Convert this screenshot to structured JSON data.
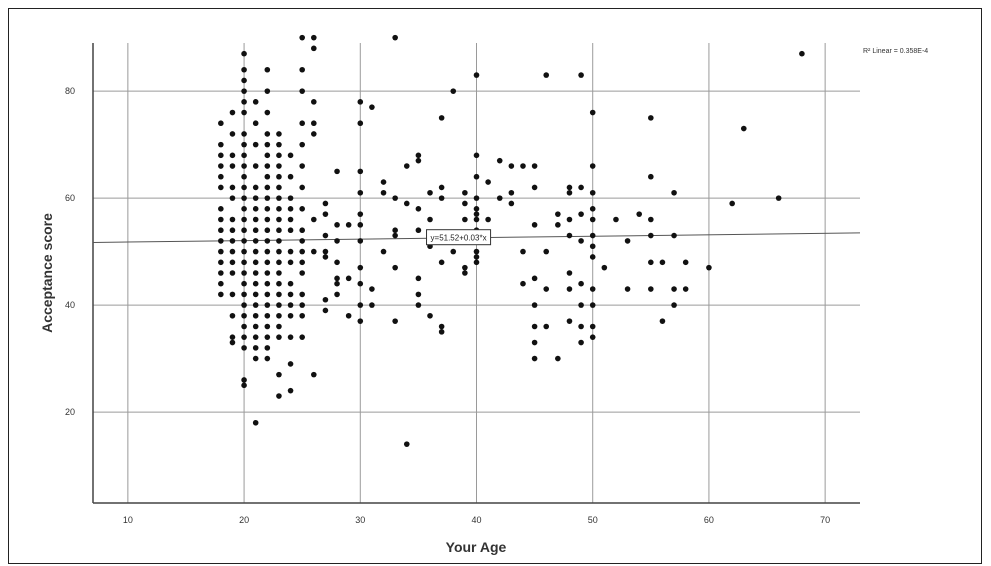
{
  "chart_data": {
    "type": "scatter",
    "title": "",
    "xlabel": "Your Age",
    "ylabel": "Acceptance score",
    "xlim": [
      7,
      73
    ],
    "ylim": [
      3,
      89
    ],
    "xticks": [
      10,
      20,
      30,
      40,
      50,
      60,
      70
    ],
    "yticks": [
      20,
      40,
      60,
      80
    ],
    "xtick_labels": [
      "10",
      "20",
      "30",
      "40",
      "50",
      "60",
      "70"
    ],
    "ytick_labels": [
      "20",
      "40",
      "60",
      "80"
    ],
    "grid": true,
    "legend_text": "R² Linear = 0.358E-4",
    "legend_placement": "top-right",
    "fit_line": {
      "intercept": 51.52,
      "slope": 0.027,
      "label": "y=51.52+0.03*x"
    },
    "colors": {
      "points": "#111111",
      "grid": "#9a9a9a",
      "axis": "#444444"
    },
    "points": [
      [
        18,
        74
      ],
      [
        18,
        70
      ],
      [
        18,
        68
      ],
      [
        18,
        66
      ],
      [
        18,
        64
      ],
      [
        18,
        62
      ],
      [
        18,
        58
      ],
      [
        18,
        56
      ],
      [
        18,
        54
      ],
      [
        18,
        52
      ],
      [
        18,
        50
      ],
      [
        18,
        48
      ],
      [
        18,
        46
      ],
      [
        18,
        44
      ],
      [
        18,
        42
      ],
      [
        19,
        76
      ],
      [
        19,
        72
      ],
      [
        19,
        68
      ],
      [
        19,
        66
      ],
      [
        19,
        62
      ],
      [
        19,
        60
      ],
      [
        19,
        56
      ],
      [
        19,
        54
      ],
      [
        19,
        52
      ],
      [
        19,
        50
      ],
      [
        19,
        48
      ],
      [
        19,
        46
      ],
      [
        19,
        42
      ],
      [
        19,
        38
      ],
      [
        19,
        34
      ],
      [
        19,
        33
      ],
      [
        20,
        87
      ],
      [
        20,
        84
      ],
      [
        20,
        82
      ],
      [
        20,
        80
      ],
      [
        20,
        78
      ],
      [
        20,
        76
      ],
      [
        20,
        72
      ],
      [
        20,
        70
      ],
      [
        20,
        68
      ],
      [
        20,
        66
      ],
      [
        20,
        64
      ],
      [
        20,
        62
      ],
      [
        20,
        60
      ],
      [
        20,
        58
      ],
      [
        20,
        56
      ],
      [
        20,
        54
      ],
      [
        20,
        52
      ],
      [
        20,
        50
      ],
      [
        20,
        48
      ],
      [
        20,
        46
      ],
      [
        20,
        44
      ],
      [
        20,
        42
      ],
      [
        20,
        40
      ],
      [
        20,
        38
      ],
      [
        20,
        36
      ],
      [
        20,
        34
      ],
      [
        20,
        32
      ],
      [
        20,
        26
      ],
      [
        20,
        25
      ],
      [
        21,
        78
      ],
      [
        21,
        74
      ],
      [
        21,
        70
      ],
      [
        21,
        66
      ],
      [
        21,
        62
      ],
      [
        21,
        60
      ],
      [
        21,
        58
      ],
      [
        21,
        56
      ],
      [
        21,
        54
      ],
      [
        21,
        52
      ],
      [
        21,
        50
      ],
      [
        21,
        48
      ],
      [
        21,
        46
      ],
      [
        21,
        44
      ],
      [
        21,
        42
      ],
      [
        21,
        40
      ],
      [
        21,
        38
      ],
      [
        21,
        36
      ],
      [
        21,
        34
      ],
      [
        21,
        32
      ],
      [
        21,
        30
      ],
      [
        21,
        18
      ],
      [
        22,
        84
      ],
      [
        22,
        80
      ],
      [
        22,
        76
      ],
      [
        22,
        72
      ],
      [
        22,
        70
      ],
      [
        22,
        68
      ],
      [
        22,
        66
      ],
      [
        22,
        64
      ],
      [
        22,
        62
      ],
      [
        22,
        60
      ],
      [
        22,
        58
      ],
      [
        22,
        56
      ],
      [
        22,
        54
      ],
      [
        22,
        52
      ],
      [
        22,
        50
      ],
      [
        22,
        48
      ],
      [
        22,
        46
      ],
      [
        22,
        44
      ],
      [
        22,
        42
      ],
      [
        22,
        40
      ],
      [
        22,
        38
      ],
      [
        22,
        36
      ],
      [
        22,
        34
      ],
      [
        22,
        32
      ],
      [
        22,
        30
      ],
      [
        23,
        72
      ],
      [
        23,
        70
      ],
      [
        23,
        68
      ],
      [
        23,
        66
      ],
      [
        23,
        64
      ],
      [
        23,
        62
      ],
      [
        23,
        60
      ],
      [
        23,
        58
      ],
      [
        23,
        56
      ],
      [
        23,
        54
      ],
      [
        23,
        52
      ],
      [
        23,
        50
      ],
      [
        23,
        48
      ],
      [
        23,
        46
      ],
      [
        23,
        44
      ],
      [
        23,
        42
      ],
      [
        23,
        40
      ],
      [
        23,
        38
      ],
      [
        23,
        36
      ],
      [
        23,
        34
      ],
      [
        23,
        27
      ],
      [
        23,
        23
      ],
      [
        24,
        68
      ],
      [
        24,
        64
      ],
      [
        24,
        60
      ],
      [
        24,
        58
      ],
      [
        24,
        56
      ],
      [
        24,
        54
      ],
      [
        24,
        50
      ],
      [
        24,
        48
      ],
      [
        24,
        44
      ],
      [
        24,
        42
      ],
      [
        24,
        40
      ],
      [
        24,
        38
      ],
      [
        24,
        34
      ],
      [
        24,
        29
      ],
      [
        24,
        24
      ],
      [
        25,
        90
      ],
      [
        25,
        84
      ],
      [
        25,
        80
      ],
      [
        25,
        74
      ],
      [
        25,
        70
      ],
      [
        25,
        66
      ],
      [
        25,
        62
      ],
      [
        25,
        58
      ],
      [
        25,
        54
      ],
      [
        25,
        52
      ],
      [
        25,
        50
      ],
      [
        25,
        48
      ],
      [
        25,
        46
      ],
      [
        25,
        42
      ],
      [
        25,
        40
      ],
      [
        25,
        38
      ],
      [
        25,
        34
      ],
      [
        26,
        90
      ],
      [
        26,
        88
      ],
      [
        26,
        78
      ],
      [
        26,
        74
      ],
      [
        26,
        72
      ],
      [
        26,
        56
      ],
      [
        26,
        50
      ],
      [
        26,
        27
      ],
      [
        27,
        59
      ],
      [
        27,
        57
      ],
      [
        27,
        53
      ],
      [
        27,
        50
      ],
      [
        27,
        49
      ],
      [
        27,
        41
      ],
      [
        27,
        39
      ],
      [
        28,
        65
      ],
      [
        28,
        55
      ],
      [
        28,
        52
      ],
      [
        28,
        48
      ],
      [
        28,
        45
      ],
      [
        28,
        44
      ],
      [
        28,
        42
      ],
      [
        29,
        55
      ],
      [
        29,
        45
      ],
      [
        29,
        38
      ],
      [
        30,
        78
      ],
      [
        30,
        74
      ],
      [
        30,
        65
      ],
      [
        30,
        61
      ],
      [
        30,
        57
      ],
      [
        30,
        55
      ],
      [
        30,
        52
      ],
      [
        30,
        47
      ],
      [
        30,
        44
      ],
      [
        30,
        40
      ],
      [
        30,
        37
      ],
      [
        31,
        77
      ],
      [
        31,
        43
      ],
      [
        31,
        40
      ],
      [
        32,
        63
      ],
      [
        32,
        61
      ],
      [
        32,
        50
      ],
      [
        33,
        90
      ],
      [
        33,
        60
      ],
      [
        33,
        54
      ],
      [
        33,
        53
      ],
      [
        33,
        47
      ],
      [
        33,
        37
      ],
      [
        34,
        66
      ],
      [
        34,
        59
      ],
      [
        34,
        14
      ],
      [
        35,
        68
      ],
      [
        35,
        67
      ],
      [
        35,
        58
      ],
      [
        35,
        54
      ],
      [
        35,
        45
      ],
      [
        35,
        42
      ],
      [
        35,
        40
      ],
      [
        36,
        61
      ],
      [
        36,
        56
      ],
      [
        36,
        51
      ],
      [
        36,
        38
      ],
      [
        37,
        75
      ],
      [
        37,
        62
      ],
      [
        37,
        60
      ],
      [
        37,
        48
      ],
      [
        37,
        36
      ],
      [
        37,
        35
      ],
      [
        38,
        80
      ],
      [
        38,
        50
      ],
      [
        39,
        61
      ],
      [
        39,
        59
      ],
      [
        39,
        56
      ],
      [
        39,
        47
      ],
      [
        39,
        46
      ],
      [
        40,
        83
      ],
      [
        40,
        68
      ],
      [
        40,
        64
      ],
      [
        40,
        60
      ],
      [
        40,
        58
      ],
      [
        40,
        57
      ],
      [
        40,
        56
      ],
      [
        40,
        54
      ],
      [
        40,
        52
      ],
      [
        40,
        50
      ],
      [
        40,
        49
      ],
      [
        40,
        48
      ],
      [
        41,
        63
      ],
      [
        41,
        56
      ],
      [
        41,
        53
      ],
      [
        42,
        67
      ],
      [
        42,
        60
      ],
      [
        43,
        66
      ],
      [
        43,
        61
      ],
      [
        43,
        59
      ],
      [
        44,
        66
      ],
      [
        44,
        50
      ],
      [
        44,
        44
      ],
      [
        45,
        66
      ],
      [
        45,
        62
      ],
      [
        45,
        55
      ],
      [
        45,
        45
      ],
      [
        45,
        40
      ],
      [
        45,
        36
      ],
      [
        45,
        33
      ],
      [
        45,
        30
      ],
      [
        46,
        83
      ],
      [
        46,
        50
      ],
      [
        46,
        43
      ],
      [
        46,
        36
      ],
      [
        47,
        57
      ],
      [
        47,
        55
      ],
      [
        47,
        30
      ],
      [
        48,
        62
      ],
      [
        48,
        61
      ],
      [
        48,
        56
      ],
      [
        48,
        53
      ],
      [
        48,
        46
      ],
      [
        48,
        43
      ],
      [
        48,
        37
      ],
      [
        49,
        83
      ],
      [
        49,
        62
      ],
      [
        49,
        57
      ],
      [
        49,
        52
      ],
      [
        49,
        44
      ],
      [
        49,
        40
      ],
      [
        49,
        36
      ],
      [
        49,
        33
      ],
      [
        50,
        76
      ],
      [
        50,
        66
      ],
      [
        50,
        61
      ],
      [
        50,
        58
      ],
      [
        50,
        56
      ],
      [
        50,
        53
      ],
      [
        50,
        51
      ],
      [
        50,
        49
      ],
      [
        50,
        43
      ],
      [
        50,
        40
      ],
      [
        50,
        36
      ],
      [
        50,
        34
      ],
      [
        51,
        47
      ],
      [
        52,
        56
      ],
      [
        53,
        52
      ],
      [
        53,
        43
      ],
      [
        54,
        57
      ],
      [
        55,
        75
      ],
      [
        55,
        64
      ],
      [
        55,
        56
      ],
      [
        55,
        53
      ],
      [
        55,
        48
      ],
      [
        55,
        43
      ],
      [
        56,
        48
      ],
      [
        56,
        37
      ],
      [
        57,
        61
      ],
      [
        57,
        53
      ],
      [
        57,
        43
      ],
      [
        57,
        40
      ],
      [
        58,
        48
      ],
      [
        58,
        43
      ],
      [
        60,
        47
      ],
      [
        62,
        59
      ],
      [
        63,
        73
      ],
      [
        66,
        60
      ],
      [
        68,
        87
      ]
    ]
  }
}
